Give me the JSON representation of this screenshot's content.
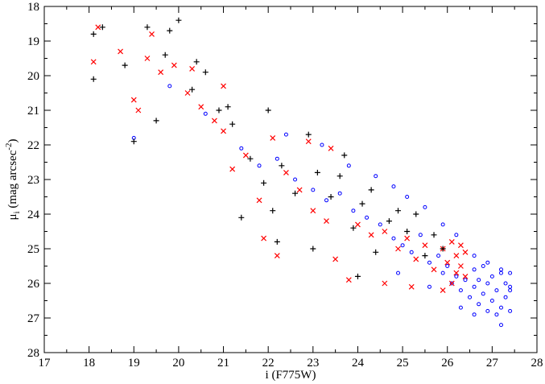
{
  "chart_data": {
    "type": "scatter",
    "xlabel": "i (F775W)",
    "ylabel": {
      "prefix": "μ",
      "subscript": "i",
      "middle": " (mag arcsec",
      "superscript": "-2",
      "suffix": ")"
    },
    "xlim": [
      17,
      28
    ],
    "ylim": [
      28,
      18
    ],
    "y_inverted": true,
    "x_ticks": [
      17,
      18,
      19,
      20,
      21,
      22,
      23,
      24,
      25,
      26,
      27,
      28
    ],
    "y_ticks": [
      18,
      19,
      20,
      21,
      22,
      23,
      24,
      25,
      26,
      27,
      28
    ],
    "grid": false,
    "legend": "none",
    "series": [
      {
        "marker": "circle-open",
        "color": "#0000ff",
        "points": [
          [
            19.0,
            21.8
          ],
          [
            19.8,
            20.3
          ],
          [
            20.6,
            21.1
          ],
          [
            21.4,
            22.1
          ],
          [
            21.8,
            22.6
          ],
          [
            22.2,
            22.4
          ],
          [
            22.6,
            23.0
          ],
          [
            23.0,
            23.3
          ],
          [
            23.3,
            23.6
          ],
          [
            23.6,
            23.4
          ],
          [
            23.9,
            23.9
          ],
          [
            24.2,
            24.1
          ],
          [
            24.5,
            24.3
          ],
          [
            24.8,
            24.7
          ],
          [
            25.0,
            24.9
          ],
          [
            25.2,
            25.1
          ],
          [
            25.4,
            24.6
          ],
          [
            25.6,
            25.4
          ],
          [
            25.8,
            25.2
          ],
          [
            25.9,
            25.7
          ],
          [
            26.0,
            25.5
          ],
          [
            26.1,
            26.0
          ],
          [
            26.2,
            25.8
          ],
          [
            26.3,
            26.2
          ],
          [
            26.4,
            25.9
          ],
          [
            26.5,
            26.4
          ],
          [
            26.6,
            26.1
          ],
          [
            26.6,
            25.6
          ],
          [
            26.7,
            26.6
          ],
          [
            26.7,
            25.9
          ],
          [
            26.8,
            26.3
          ],
          [
            26.8,
            25.5
          ],
          [
            26.9,
            26.8
          ],
          [
            26.9,
            26.0
          ],
          [
            27.0,
            26.5
          ],
          [
            27.0,
            25.8
          ],
          [
            27.1,
            26.9
          ],
          [
            27.1,
            26.2
          ],
          [
            27.2,
            25.6
          ],
          [
            27.2,
            26.7
          ],
          [
            27.3,
            26.0
          ],
          [
            27.3,
            26.4
          ],
          [
            27.4,
            26.8
          ],
          [
            27.4,
            25.7
          ],
          [
            27.4,
            26.2
          ],
          [
            27.2,
            27.2
          ],
          [
            26.6,
            26.9
          ],
          [
            26.3,
            26.7
          ],
          [
            25.6,
            26.1
          ],
          [
            24.9,
            25.7
          ],
          [
            22.4,
            21.7
          ],
          [
            23.2,
            22.0
          ],
          [
            23.8,
            22.6
          ],
          [
            24.4,
            22.9
          ],
          [
            24.8,
            23.2
          ],
          [
            25.1,
            23.5
          ],
          [
            25.5,
            23.8
          ],
          [
            25.9,
            24.3
          ],
          [
            26.2,
            24.6
          ],
          [
            26.6,
            25.2
          ],
          [
            26.9,
            25.4
          ],
          [
            27.2,
            25.7
          ],
          [
            27.4,
            26.1
          ]
        ]
      },
      {
        "marker": "cross",
        "color": "#ff0000",
        "points": [
          [
            18.1,
            19.6
          ],
          [
            18.2,
            18.6
          ],
          [
            18.7,
            19.3
          ],
          [
            19.0,
            20.7
          ],
          [
            19.1,
            21.0
          ],
          [
            19.3,
            19.5
          ],
          [
            19.6,
            19.9
          ],
          [
            19.9,
            19.7
          ],
          [
            20.2,
            20.5
          ],
          [
            20.5,
            20.9
          ],
          [
            20.8,
            21.3
          ],
          [
            21.0,
            21.6
          ],
          [
            21.2,
            22.7
          ],
          [
            21.5,
            22.3
          ],
          [
            21.8,
            23.6
          ],
          [
            21.9,
            24.7
          ],
          [
            22.2,
            25.2
          ],
          [
            22.4,
            22.8
          ],
          [
            22.7,
            23.3
          ],
          [
            23.0,
            23.9
          ],
          [
            23.3,
            24.2
          ],
          [
            23.5,
            25.3
          ],
          [
            23.8,
            25.9
          ],
          [
            24.0,
            24.3
          ],
          [
            24.3,
            24.6
          ],
          [
            24.6,
            24.5
          ],
          [
            24.9,
            25.0
          ],
          [
            25.1,
            24.7
          ],
          [
            25.3,
            25.3
          ],
          [
            25.5,
            24.9
          ],
          [
            25.7,
            25.6
          ],
          [
            25.9,
            25.0
          ],
          [
            26.0,
            25.4
          ],
          [
            26.1,
            24.8
          ],
          [
            26.2,
            25.2
          ],
          [
            26.2,
            25.7
          ],
          [
            26.3,
            24.9
          ],
          [
            26.3,
            25.5
          ],
          [
            26.4,
            25.1
          ],
          [
            26.4,
            25.8
          ],
          [
            26.1,
            26.0
          ],
          [
            25.9,
            26.2
          ],
          [
            25.2,
            26.1
          ],
          [
            24.6,
            26.0
          ],
          [
            23.4,
            22.1
          ],
          [
            22.9,
            21.9
          ],
          [
            22.1,
            21.8
          ],
          [
            21.0,
            20.3
          ],
          [
            20.3,
            19.8
          ],
          [
            19.4,
            18.8
          ]
        ]
      },
      {
        "marker": "plus",
        "color": "#000000",
        "points": [
          [
            18.1,
            20.1
          ],
          [
            18.1,
            18.8
          ],
          [
            18.3,
            18.6
          ],
          [
            18.8,
            19.7
          ],
          [
            19.0,
            21.9
          ],
          [
            19.3,
            18.6
          ],
          [
            19.5,
            21.3
          ],
          [
            19.8,
            18.7
          ],
          [
            20.0,
            18.4
          ],
          [
            20.3,
            20.4
          ],
          [
            20.6,
            19.9
          ],
          [
            20.9,
            21.0
          ],
          [
            21.2,
            21.4
          ],
          [
            21.4,
            24.1
          ],
          [
            21.6,
            22.4
          ],
          [
            21.9,
            23.1
          ],
          [
            22.1,
            23.9
          ],
          [
            22.3,
            22.6
          ],
          [
            22.6,
            23.4
          ],
          [
            22.9,
            21.7
          ],
          [
            23.1,
            22.8
          ],
          [
            23.4,
            23.5
          ],
          [
            23.6,
            22.9
          ],
          [
            23.9,
            24.4
          ],
          [
            24.1,
            23.7
          ],
          [
            24.4,
            25.1
          ],
          [
            24.7,
            24.2
          ],
          [
            24.9,
            23.9
          ],
          [
            25.1,
            24.5
          ],
          [
            25.3,
            24.0
          ],
          [
            25.5,
            25.2
          ],
          [
            25.7,
            24.6
          ],
          [
            25.9,
            25.0
          ],
          [
            24.3,
            23.3
          ],
          [
            23.7,
            22.3
          ],
          [
            22.0,
            21.0
          ],
          [
            21.1,
            20.9
          ],
          [
            20.4,
            19.6
          ],
          [
            19.7,
            19.4
          ],
          [
            24.0,
            25.8
          ],
          [
            22.2,
            24.8
          ],
          [
            23.0,
            25.0
          ]
        ]
      }
    ]
  }
}
